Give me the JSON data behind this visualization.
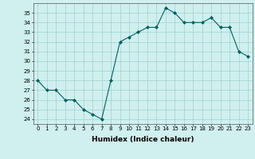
{
  "x": [
    0,
    1,
    2,
    3,
    4,
    5,
    6,
    7,
    8,
    9,
    10,
    11,
    12,
    13,
    14,
    15,
    16,
    17,
    18,
    19,
    20,
    21,
    22,
    23
  ],
  "y": [
    28,
    27,
    27,
    26,
    26,
    25,
    24.5,
    24,
    28,
    32,
    32.5,
    33,
    33.5,
    33.5,
    35.5,
    35,
    34,
    34,
    34,
    34.5,
    33.5,
    33.5,
    31,
    30.5
  ],
  "xlabel": "Humidex (Indice chaleur)",
  "ylim": [
    23.5,
    36
  ],
  "xlim": [
    -0.5,
    23.5
  ],
  "yticks": [
    24,
    25,
    26,
    27,
    28,
    29,
    30,
    31,
    32,
    33,
    34,
    35
  ],
  "xticks": [
    0,
    1,
    2,
    3,
    4,
    5,
    6,
    7,
    8,
    9,
    10,
    11,
    12,
    13,
    14,
    15,
    16,
    17,
    18,
    19,
    20,
    21,
    22,
    23
  ],
  "line_color": "#006060",
  "marker_color": "#006060",
  "bg_color": "#d0f0f0",
  "grid_color": "#a0d0d0",
  "tick_fontsize": 5.0,
  "xlabel_fontsize": 6.5
}
